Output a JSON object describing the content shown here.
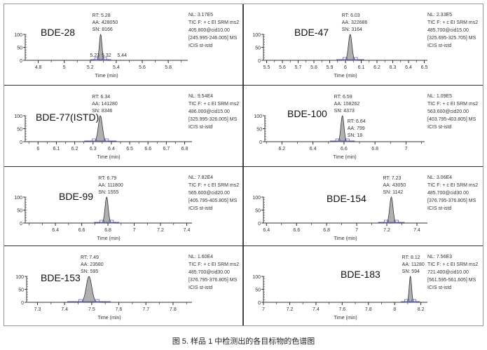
{
  "caption": "图 5. 样品 1 中检测出的各目标物的色谱图",
  "chart_data": [
    {
      "type": "line",
      "compound": "BDE-28",
      "xlabel": "Time (min)",
      "xlim": [
        4.7,
        5.95
      ],
      "ylim": [
        0,
        100
      ],
      "yticks": [
        0,
        50,
        100
      ],
      "xticks": [
        4.8,
        5.0,
        5.2,
        5.4,
        5.6,
        5.8
      ],
      "peak": {
        "RT": "RT: 5.28",
        "AA": "AA: 428050",
        "SN": "SN: 8166",
        "rt": 5.28,
        "height": 100,
        "width": 0.01
      },
      "minor_labels": [
        "5.23",
        "5.32",
        "5.44"
      ],
      "info": [
        "NL: 3.17E5",
        "TIC F: + c EI SRM ms2",
        "405.800@cid10.00",
        "[245.995-246.005]  MS",
        "ICIS st-istd"
      ]
    },
    {
      "type": "line",
      "compound": "BDE-47",
      "xlabel": "Time (min)",
      "xlim": [
        5.48,
        6.52
      ],
      "ylim": [
        0,
        100
      ],
      "yticks": [
        0,
        50,
        100
      ],
      "xticks": [
        5.5,
        5.6,
        5.7,
        5.8,
        5.9,
        6.0,
        6.1,
        6.2,
        6.3,
        6.4,
        6.5
      ],
      "peak": {
        "RT": "RT: 6.03",
        "AA": "AA: 322686",
        "SN": "SN: 3164",
        "rt": 6.03,
        "height": 100,
        "width": 0.011
      },
      "info": [
        "NL: 2.33E5",
        "TIC F: + c EI SRM ms2",
        "485.700@cid15.00",
        "[325.695-325.705]  MS",
        "ICIS st-istd"
      ]
    },
    {
      "type": "line",
      "compound": "BDE-77(ISTD)",
      "xlabel": "Time (min)",
      "xlim": [
        5.93,
        6.84
      ],
      "ylim": [
        0,
        100
      ],
      "yticks": [
        0,
        50,
        100
      ],
      "xticks": [
        6.0,
        6.1,
        6.2,
        6.3,
        6.4,
        6.5,
        6.6,
        6.7,
        6.8
      ],
      "peak": {
        "RT": "RT: 6.34",
        "AA": "AA: 141280",
        "SN": "SN: 8346",
        "rt": 6.34,
        "height": 100,
        "width": 0.011
      },
      "info": [
        "NL: 9.54E4",
        "TIC F: + c EI SRM ms2",
        "486.000@cid15.00",
        "[325.995-326.005]  MS",
        "ICIS st-istd"
      ]
    },
    {
      "type": "line",
      "compound": "BDE-100",
      "xlabel": "Time (min)",
      "xlim": [
        6.09,
        7.12
      ],
      "ylim": [
        0,
        100
      ],
      "yticks": [
        0,
        50,
        100
      ],
      "xticks": [
        6.2,
        6.4,
        6.6,
        6.8,
        7.0
      ],
      "peak": {
        "RT": "RT: 6.59",
        "AA": "AA: 158262",
        "SN": "SN: 4373",
        "rt": 6.59,
        "height": 100,
        "width": 0.01
      },
      "secondary": {
        "RT": "RT: 6.64",
        "AA": "AA: 799",
        "SN": "SN: 18"
      },
      "info": [
        "NL: 1.09E5",
        "TIC F: + c EI SRM ms2",
        "563.600@cid20.00",
        "[403.795-403.805]  MS",
        "ICIS st-istd"
      ]
    },
    {
      "type": "line",
      "compound": "BDE-99",
      "xlabel": "Time (min)",
      "xlim": [
        6.17,
        7.44
      ],
      "ylim": [
        0,
        100
      ],
      "yticks": [
        0,
        50,
        100
      ],
      "xticks": [
        6.4,
        6.6,
        6.8,
        7.0,
        7.2,
        7.4
      ],
      "peak": {
        "RT": "RT: 6.79",
        "AA": "AA: 111800",
        "SN": "SN: 1555",
        "rt": 6.79,
        "height": 100,
        "width": 0.012
      },
      "info": [
        "NL: 7.82E4",
        "TIC F: + c EI SRM ms2",
        "565.600@cid20.00",
        "[405.795-405.805]  MS",
        "ICIS st-istd"
      ]
    },
    {
      "type": "line",
      "compound": "BDE-154",
      "xlabel": "Time (min)",
      "xlim": [
        6.38,
        7.47
      ],
      "ylim": [
        0,
        100
      ],
      "yticks": [
        0,
        50,
        100
      ],
      "xticks": [
        6.4,
        6.6,
        6.8,
        7.0,
        7.2,
        7.4
      ],
      "peak": {
        "RT": "RT: 7.23",
        "AA": "AA: 43050",
        "SN": "SN: 1142",
        "rt": 7.23,
        "height": 100,
        "width": 0.011
      },
      "info": [
        "NL: 3.06E4",
        "TIC F: + c EI SRM ms2",
        "485.700@cid30.00",
        "[376.795-376.805]  MS",
        "ICIS st-istd"
      ]
    },
    {
      "type": "line",
      "compound": "BDE-153",
      "xlabel": "Time (min)",
      "xlim": [
        7.26,
        7.87
      ],
      "ylim": [
        0,
        100
      ],
      "yticks": [
        0,
        50,
        100
      ],
      "xticks": [
        7.3,
        7.4,
        7.5,
        7.6,
        7.7,
        7.8
      ],
      "peak": {
        "RT": "RT: 7.49",
        "AA": "AA: 23580",
        "SN": "SN: 595",
        "rt": 7.49,
        "height": 100,
        "width": 0.01
      },
      "info": [
        "NL: 1.60E4",
        "TIC F: + c EI SRM ms2",
        "485.700@cid30.00",
        "[376.795-376.805]  MS",
        "ICIS st-istd"
      ]
    },
    {
      "type": "line",
      "compound": "BDE-183",
      "xlabel": "Time (min)",
      "xlim": [
        7.0,
        8.25
      ],
      "ylim": [
        0,
        100
      ],
      "yticks": [
        0,
        50,
        100
      ],
      "xticks": [
        7.0,
        7.2,
        7.4,
        7.6,
        7.8,
        8.0,
        8.2
      ],
      "peak": {
        "RT": "RT: 8.12",
        "AA": "AA: 11280",
        "SN": "SN: 594",
        "rt": 8.12,
        "height": 100,
        "width": 0.009
      },
      "info": [
        "NL: 7.56E3",
        "TIC F: + c EI SRM ms2",
        "721.400@cid10.00",
        "[561.595-561.605]  MS",
        "ICIS st-istd"
      ]
    }
  ]
}
